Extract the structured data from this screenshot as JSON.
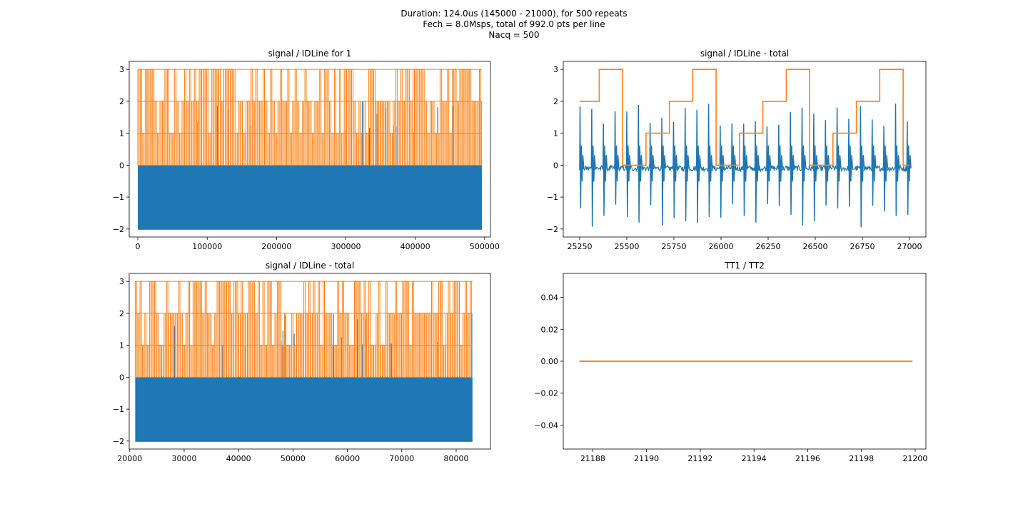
{
  "figure": {
    "suptitle": [
      "Duration: 124.0us (145000 - 21000), for 500 repeats",
      "Fech = 8.0Msps, total of 992.0 pts per line",
      "Nacq = 500"
    ],
    "colors": {
      "signal": "#1f77b4",
      "idline": "#ff7f0e",
      "axes": "#000000"
    }
  },
  "chart_data": [
    {
      "type": "line",
      "title": "signal / IDLine for 1",
      "xlim": [
        -12400,
        508400
      ],
      "ylim": [
        -2.25,
        3.25
      ],
      "xticks": [
        0,
        100000,
        200000,
        300000,
        400000,
        500000
      ],
      "yticks": [
        -2,
        -1,
        0,
        1,
        2,
        3
      ],
      "x_range": [
        0,
        496000
      ],
      "series": [
        {
          "name": "signal",
          "description": "dense signal filling -2 to 0 with spikes up to 2",
          "band": [
            -2,
            0
          ],
          "spike_max": 2
        },
        {
          "name": "IDLine",
          "description": "dense step line oscillating 0..3",
          "levels": [
            0,
            1,
            2,
            3
          ]
        }
      ]
    },
    {
      "type": "line",
      "title": "signal / IDLine - total",
      "xlim": [
        25163,
        27087
      ],
      "ylim": [
        -2.25,
        3.25
      ],
      "xticks": [
        25250,
        25500,
        25750,
        26000,
        26250,
        26500,
        26750,
        27000
      ],
      "yticks": [
        -2,
        -1,
        0,
        1,
        2,
        3
      ],
      "series": [
        {
          "name": "IDLine",
          "steps": [
            {
              "x0": 25250,
              "x1": 25354,
              "y": 2
            },
            {
              "x0": 25354,
              "x1": 25478,
              "y": 3
            },
            {
              "x0": 25478,
              "x1": 25602,
              "y": 0
            },
            {
              "x0": 25602,
              "x1": 25726,
              "y": 1
            },
            {
              "x0": 25726,
              "x1": 25850,
              "y": 2
            },
            {
              "x0": 25850,
              "x1": 25974,
              "y": 3
            },
            {
              "x0": 25974,
              "x1": 26098,
              "y": 0
            },
            {
              "x0": 26098,
              "x1": 26222,
              "y": 1
            },
            {
              "x0": 26222,
              "x1": 26346,
              "y": 2
            },
            {
              "x0": 26346,
              "x1": 26470,
              "y": 3
            },
            {
              "x0": 26470,
              "x1": 26594,
              "y": 0
            },
            {
              "x0": 26594,
              "x1": 26718,
              "y": 1
            },
            {
              "x0": 26718,
              "x1": 26842,
              "y": 2
            },
            {
              "x0": 26842,
              "x1": 26966,
              "y": 3
            },
            {
              "x0": 26966,
              "x1": 26998,
              "y": 0
            }
          ]
        },
        {
          "name": "signal",
          "spike_x": [
            25250,
            25312,
            25374,
            25436,
            25498,
            25560,
            25622,
            25684,
            25746,
            25808,
            25870,
            25932,
            25994,
            26056,
            26118,
            26180,
            26242,
            26304,
            26366,
            26428,
            26490,
            26552,
            26614,
            26676,
            26738,
            26800,
            26862,
            26924,
            26986
          ],
          "spike_range": [
            -2,
            2
          ],
          "baseline": -0.1
        }
      ]
    },
    {
      "type": "line",
      "title": "signal / IDLine - total",
      "xlim": [
        19900,
        86300
      ],
      "ylim": [
        -2.25,
        3.25
      ],
      "xticks": [
        20000,
        30000,
        40000,
        50000,
        60000,
        70000,
        80000
      ],
      "yticks": [
        -2,
        -1,
        0,
        1,
        2,
        3
      ],
      "x_range": [
        21000,
        83000
      ],
      "series": [
        {
          "name": "signal",
          "description": "dense signal filling -2 to 0 with spikes up to 2",
          "band": [
            -2,
            0
          ],
          "spike_max": 2
        },
        {
          "name": "IDLine",
          "description": "dense step line oscillating 0..3",
          "levels": [
            0,
            1,
            2,
            3
          ]
        }
      ]
    },
    {
      "type": "line",
      "title": "TT1 / TT2",
      "xlim": [
        21186.9,
        21200.4
      ],
      "ylim": [
        -0.055,
        0.055
      ],
      "xticks": [
        21188,
        21190,
        21192,
        21194,
        21196,
        21198,
        21200
      ],
      "yticks": [
        -0.04,
        -0.02,
        0.0,
        0.02,
        0.04
      ],
      "ytick_labels": [
        "−0.04",
        "−0.02",
        "0.00",
        "0.02",
        "0.04"
      ],
      "series": [
        {
          "name": "TT1",
          "x": [
            21187.5,
            21199.9
          ],
          "y": [
            0,
            0
          ]
        },
        {
          "name": "TT2",
          "x": [
            21187.5,
            21199.9
          ],
          "y": [
            0,
            0
          ]
        }
      ]
    }
  ]
}
